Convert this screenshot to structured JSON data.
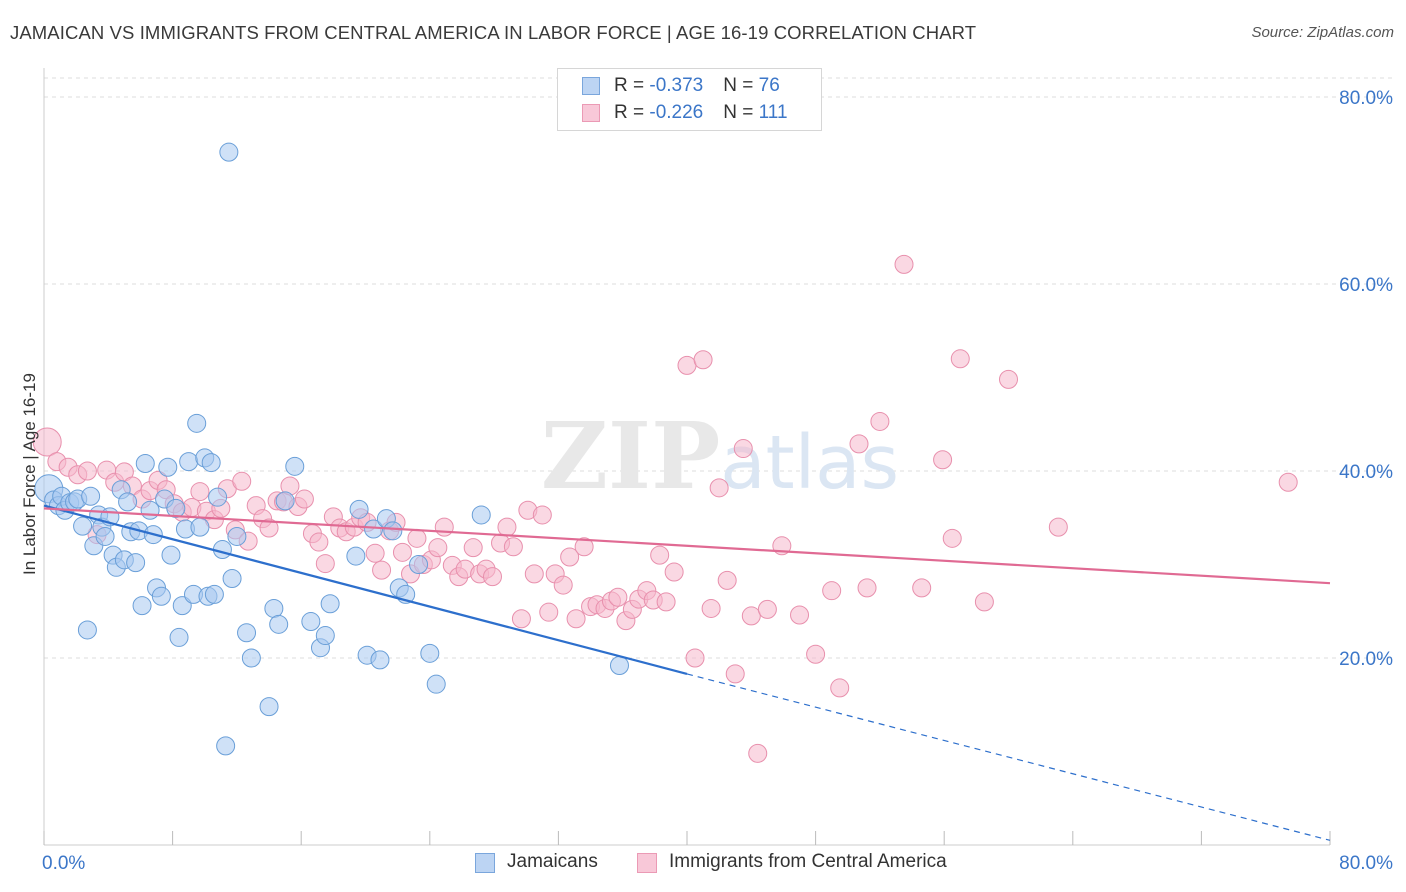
{
  "title": "JAMAICAN VS IMMIGRANTS FROM CENTRAL AMERICA IN LABOR FORCE | AGE 16-19 CORRELATION CHART",
  "source": "Source: ZipAtlas.com",
  "watermark": "ZIPatlas",
  "legend": {
    "series1": {
      "r_label": "R = ",
      "r_value": "-0.373",
      "n_label": "N = ",
      "n_value": "76"
    },
    "series2": {
      "r_label": "R = ",
      "r_value": "-0.226",
      "n_label": "N = ",
      "n_value": "111"
    }
  },
  "colors": {
    "blue_fill": "#a8c8f0",
    "blue_stroke": "#6a9fd8",
    "blue_line": "#2d6fcc",
    "pink_fill": "#f6b8cc",
    "pink_stroke": "#e890ad",
    "pink_line": "#e06a93",
    "tick_label": "#3b76c8",
    "grid": "#dddddd"
  },
  "chart_data": {
    "type": "scatter",
    "title": "JAMAICAN VS IMMIGRANTS FROM CENTRAL AMERICA IN LABOR FORCE | AGE 16-19 CORRELATION CHART",
    "xlabel": "",
    "ylabel": "In Labor Force | Age 16-19",
    "xlim": [
      0,
      80
    ],
    "ylim": [
      0,
      80
    ],
    "x_tick_labels": [
      "0.0%",
      "80.0%"
    ],
    "y_ticks": [
      20,
      40,
      60,
      80
    ],
    "y_tick_labels": [
      "20.0%",
      "40.0%",
      "60.0%",
      "80.0%"
    ],
    "grid": true,
    "legend_position": "top-center",
    "series": [
      {
        "name": "Jamaicans",
        "color": "#a8c8f0",
        "trend": {
          "x": [
            0,
            40,
            80
          ],
          "y": [
            36.3,
            18.3,
            0.5
          ],
          "dashed_from_x": 40
        },
        "points": [
          [
            0.3,
            38.1
          ],
          [
            0.6,
            36.9
          ],
          [
            0.9,
            36.3
          ],
          [
            1.1,
            37.3
          ],
          [
            1.3,
            35.8
          ],
          [
            1.6,
            36.6
          ],
          [
            1.9,
            36.7
          ],
          [
            2.1,
            37.0
          ],
          [
            2.4,
            34.1
          ],
          [
            2.7,
            23.0
          ],
          [
            2.9,
            37.3
          ],
          [
            3.1,
            32.0
          ],
          [
            3.4,
            35.3
          ],
          [
            3.6,
            34.0
          ],
          [
            3.8,
            33.0
          ],
          [
            4.1,
            35.1
          ],
          [
            4.3,
            31.0
          ],
          [
            4.5,
            29.7
          ],
          [
            4.8,
            38.0
          ],
          [
            5.0,
            30.5
          ],
          [
            5.2,
            36.7
          ],
          [
            5.4,
            33.5
          ],
          [
            5.7,
            30.2
          ],
          [
            5.9,
            33.6
          ],
          [
            6.1,
            25.6
          ],
          [
            6.3,
            40.8
          ],
          [
            6.6,
            35.8
          ],
          [
            6.8,
            33.2
          ],
          [
            7.0,
            27.5
          ],
          [
            7.3,
            26.6
          ],
          [
            7.5,
            37.0
          ],
          [
            7.7,
            40.4
          ],
          [
            7.9,
            31.0
          ],
          [
            8.2,
            36.0
          ],
          [
            8.4,
            22.2
          ],
          [
            8.6,
            25.6
          ],
          [
            8.8,
            33.8
          ],
          [
            9.0,
            41.0
          ],
          [
            9.3,
            26.8
          ],
          [
            9.5,
            45.1
          ],
          [
            9.7,
            34.0
          ],
          [
            10.0,
            41.4
          ],
          [
            10.2,
            26.6
          ],
          [
            10.4,
            40.9
          ],
          [
            10.6,
            26.8
          ],
          [
            10.8,
            37.2
          ],
          [
            11.1,
            31.6
          ],
          [
            11.3,
            10.6
          ],
          [
            11.5,
            74.1
          ],
          [
            11.7,
            28.5
          ],
          [
            12.0,
            33.0
          ],
          [
            12.6,
            22.7
          ],
          [
            12.9,
            20.0
          ],
          [
            14.0,
            14.8
          ],
          [
            14.3,
            25.3
          ],
          [
            14.6,
            23.6
          ],
          [
            15.0,
            36.8
          ],
          [
            15.6,
            40.5
          ],
          [
            16.6,
            23.9
          ],
          [
            17.2,
            21.1
          ],
          [
            17.5,
            22.4
          ],
          [
            17.8,
            25.8
          ],
          [
            19.4,
            30.9
          ],
          [
            19.6,
            35.9
          ],
          [
            20.1,
            20.3
          ],
          [
            20.5,
            33.8
          ],
          [
            20.9,
            19.8
          ],
          [
            21.3,
            34.9
          ],
          [
            21.7,
            33.6
          ],
          [
            22.1,
            27.5
          ],
          [
            22.5,
            26.8
          ],
          [
            23.3,
            30.0
          ],
          [
            24.0,
            20.5
          ],
          [
            24.4,
            17.2
          ],
          [
            27.2,
            35.3
          ],
          [
            35.8,
            19.2
          ]
        ]
      },
      {
        "name": "Immigrants from Central America",
        "color": "#f6b8cc",
        "trend": {
          "x": [
            0,
            80
          ],
          "y": [
            36.0,
            28.0
          ]
        },
        "points": [
          [
            0.2,
            43.1
          ],
          [
            0.8,
            41.0
          ],
          [
            1.5,
            40.4
          ],
          [
            2.1,
            39.6
          ],
          [
            2.7,
            40.0
          ],
          [
            3.3,
            33.2
          ],
          [
            3.9,
            40.1
          ],
          [
            4.4,
            38.8
          ],
          [
            5.0,
            39.9
          ],
          [
            5.5,
            38.4
          ],
          [
            6.1,
            37.0
          ],
          [
            6.6,
            37.9
          ],
          [
            7.1,
            39.0
          ],
          [
            7.6,
            38.0
          ],
          [
            8.1,
            36.5
          ],
          [
            8.6,
            35.6
          ],
          [
            9.2,
            36.1
          ],
          [
            9.7,
            37.8
          ],
          [
            10.1,
            35.7
          ],
          [
            10.6,
            34.8
          ],
          [
            11.0,
            36.0
          ],
          [
            11.4,
            38.1
          ],
          [
            11.9,
            33.7
          ],
          [
            12.3,
            38.9
          ],
          [
            12.7,
            32.5
          ],
          [
            13.2,
            36.3
          ],
          [
            13.6,
            34.9
          ],
          [
            14.0,
            33.9
          ],
          [
            14.5,
            36.8
          ],
          [
            14.9,
            36.7
          ],
          [
            15.3,
            38.4
          ],
          [
            15.8,
            36.2
          ],
          [
            16.2,
            37.0
          ],
          [
            16.7,
            33.3
          ],
          [
            17.1,
            32.4
          ],
          [
            17.5,
            30.1
          ],
          [
            18.0,
            35.1
          ],
          [
            18.4,
            33.9
          ],
          [
            18.8,
            33.5
          ],
          [
            19.3,
            34.0
          ],
          [
            19.7,
            35.0
          ],
          [
            20.1,
            34.5
          ],
          [
            20.6,
            31.2
          ],
          [
            21.0,
            29.4
          ],
          [
            21.5,
            33.6
          ],
          [
            21.9,
            34.5
          ],
          [
            22.3,
            31.3
          ],
          [
            22.8,
            29.0
          ],
          [
            23.2,
            32.8
          ],
          [
            23.6,
            30.0
          ],
          [
            24.1,
            30.5
          ],
          [
            24.5,
            31.8
          ],
          [
            24.9,
            34.0
          ],
          [
            25.4,
            29.9
          ],
          [
            25.8,
            28.7
          ],
          [
            26.2,
            29.5
          ],
          [
            26.7,
            31.8
          ],
          [
            27.1,
            29.0
          ],
          [
            27.5,
            29.5
          ],
          [
            27.9,
            28.7
          ],
          [
            28.4,
            32.3
          ],
          [
            28.8,
            34.0
          ],
          [
            29.2,
            31.9
          ],
          [
            29.7,
            24.2
          ],
          [
            30.1,
            35.8
          ],
          [
            30.5,
            29.0
          ],
          [
            31.0,
            35.3
          ],
          [
            31.4,
            24.9
          ],
          [
            31.8,
            29.0
          ],
          [
            32.3,
            27.8
          ],
          [
            32.7,
            30.8
          ],
          [
            33.1,
            24.2
          ],
          [
            33.6,
            31.9
          ],
          [
            34.0,
            25.5
          ],
          [
            34.4,
            25.7
          ],
          [
            34.9,
            25.3
          ],
          [
            35.3,
            26.1
          ],
          [
            35.7,
            26.5
          ],
          [
            36.2,
            24.0
          ],
          [
            36.6,
            25.2
          ],
          [
            37.0,
            26.3
          ],
          [
            37.5,
            27.2
          ],
          [
            37.9,
            26.2
          ],
          [
            38.3,
            31.0
          ],
          [
            38.7,
            26.0
          ],
          [
            39.2,
            29.2
          ],
          [
            40.0,
            51.3
          ],
          [
            40.5,
            20.0
          ],
          [
            41.0,
            51.9
          ],
          [
            41.5,
            25.3
          ],
          [
            42.0,
            38.2
          ],
          [
            42.5,
            28.3
          ],
          [
            43.0,
            18.3
          ],
          [
            43.5,
            42.4
          ],
          [
            44.0,
            24.5
          ],
          [
            44.4,
            9.8
          ],
          [
            45.0,
            25.2
          ],
          [
            45.9,
            32.0
          ],
          [
            47.0,
            24.6
          ],
          [
            48.0,
            20.4
          ],
          [
            49.0,
            27.2
          ],
          [
            49.5,
            16.8
          ],
          [
            50.7,
            42.9
          ],
          [
            51.2,
            27.5
          ],
          [
            52.0,
            45.3
          ],
          [
            53.5,
            62.1
          ],
          [
            54.6,
            27.5
          ],
          [
            55.9,
            41.2
          ],
          [
            56.5,
            32.8
          ],
          [
            57.0,
            52.0
          ],
          [
            58.5,
            26.0
          ],
          [
            60.0,
            49.8
          ],
          [
            63.1,
            34.0
          ],
          [
            77.4,
            38.8
          ]
        ]
      }
    ]
  },
  "bottom_legend": {
    "series1": "Jamaicans",
    "series2": "Immigrants from Central America"
  }
}
